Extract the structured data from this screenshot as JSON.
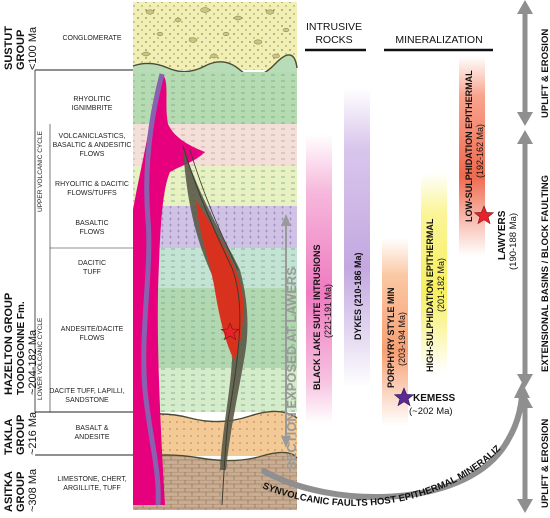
{
  "groups": {
    "sustut": [
      "SUSTUT",
      "GROUP",
      "<100 Ma"
    ],
    "hazelton": [
      "HAZELTON GROUP",
      "TOODOGONNE Fm.",
      "~204-182 Ma"
    ],
    "takla": [
      "TAKLA",
      "GROUP",
      "~216 Ma"
    ],
    "asitka": [
      "ASITKA",
      "GROUP",
      "~308 Ma"
    ]
  },
  "cycles": {
    "upper": "UPPER VOLCANIC CYCLE",
    "lower": "LOWER VOLCANIC CYCLE"
  },
  "units": {
    "conglomerate": "CONGLOMERATE",
    "rhyolitic_ignimbrite": [
      "RHYOLITIC",
      "IGNIMBRITE"
    ],
    "volcaniclastics": [
      "VOLCANICLASTICS,",
      "BASALTIC & ANDESITIC",
      "FLOWS"
    ],
    "rhyolitic_dacitic": [
      "RHYOLITIC & DACITIC",
      "FLOWS/TUFFS"
    ],
    "basaltic_flows": [
      "BASALTIC",
      "FLOWS"
    ],
    "dacitic_tuff": [
      "DACITIC",
      "TUFF"
    ],
    "andesite_dacite": [
      "ANDESITE/DACITE",
      "FLOWS"
    ],
    "dacite_tuff_lapilli": [
      "DACITE TUFF, LAPILLI,",
      "SANDSTONE"
    ],
    "basalt_andesite": [
      "BASALT &",
      "ANDESITE"
    ],
    "limestone": [
      "LIMESTONE, CHERT,",
      "ARGILLITE, TUFF"
    ]
  },
  "section_label": "SECTION EXPOSED AT LAWERS",
  "headers": {
    "intrusive": [
      "INTRUSIVE",
      "ROCKS"
    ],
    "mineralization": "MINERALIZATION"
  },
  "bars": {
    "black_lake": [
      "BLACK LAKE SUITE INTRUSIONS",
      "(221-191 Ma)"
    ],
    "dykes": "DYKES (210-186 Ma)",
    "porphyry": [
      "PORPHYRY STYLE MIN",
      "(203-194 Ma)"
    ],
    "high_sulph": [
      "HIGH-SULPHIDATION EPITHERMAL",
      "(201-182 Ma)"
    ],
    "low_sulph": [
      "LOW-SULPHIDATION EPITHERMAL",
      "(192-162 Ma)"
    ]
  },
  "deposits": {
    "kemess": [
      "KEMESS",
      "(~202 Ma)"
    ],
    "lawyers": [
      "LAWYERS",
      "(190-188 Ma)"
    ]
  },
  "tectonics": {
    "uplift_top": "UPLIFT & EROSION",
    "extensional": "EXTENSIONAL BASINS / BLOCK FAULTING",
    "uplift_bottom": "UPLIFT & EROSION"
  },
  "faults_label": "SYNVOLCANIC FAULTS HOST EPITHERMAL MINERALIZATION",
  "colors": {
    "pink_intrusion": "#e6007e",
    "dyke_purple": "#8a60b0",
    "deposit_red": "#d8321e",
    "star_red": "#e8222a",
    "star_purple": "#5a2a96"
  }
}
